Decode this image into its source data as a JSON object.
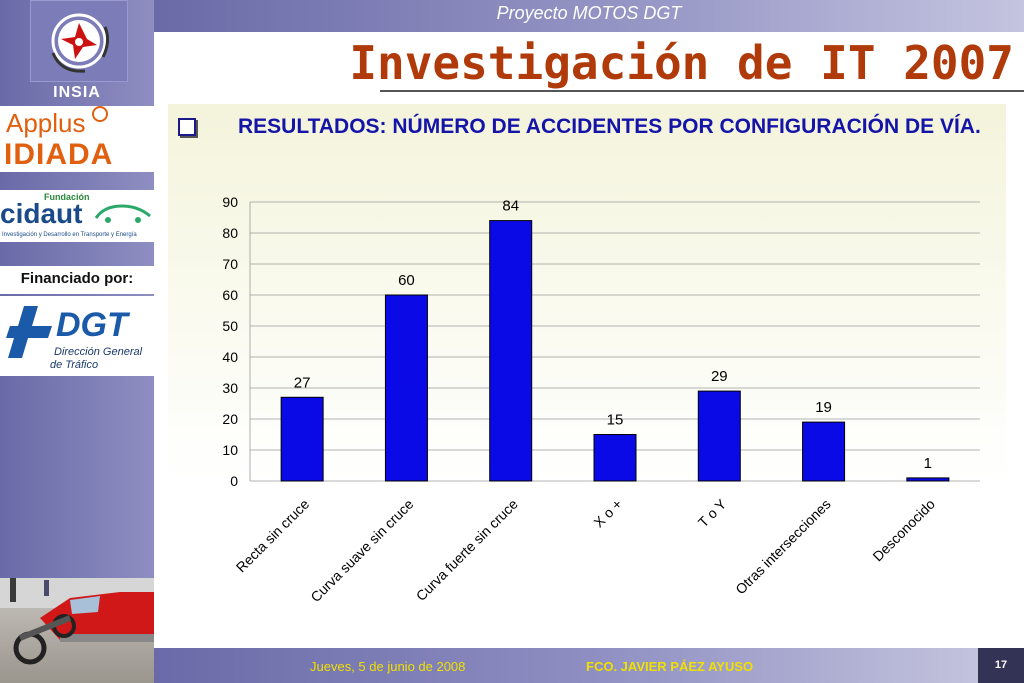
{
  "header": {
    "project": "Proyecto MOTOS DGT",
    "title": "Investigación de IT 2007"
  },
  "sidebar": {
    "insia": "INSIA",
    "applus": "Applus",
    "idiada": "IDIADA",
    "fundacion": "Fundación",
    "cidaut": "cidaut",
    "cidaut_tagline": "Investigación y Desarrollo en Transporte y Energía",
    "financiado": "Financiado por:",
    "dgt": "DGT",
    "dgt_sub1": "Dirección General",
    "dgt_sub2": "de Tráfico"
  },
  "heading": "RESULTADOS: NÚMERO DE ACCIDENTES POR CONFIGURACIÓN DE VÍA.",
  "chart_data": {
    "type": "bar",
    "categories": [
      "Recta sin cruce",
      "Curva suave sin cruce",
      "Curva fuerte sin cruce",
      "X o +",
      "T o Y",
      "Otras intersecciones",
      "Desconocido"
    ],
    "values": [
      27,
      60,
      84,
      15,
      29,
      19,
      1
    ],
    "ylim": [
      0,
      90
    ],
    "yticks": [
      0,
      10,
      20,
      30,
      40,
      50,
      60,
      70,
      80,
      90
    ],
    "grid": true,
    "bar_color": "#0a0ae6",
    "xlabel": "",
    "ylabel": ""
  },
  "footer": {
    "date": "Jueves, 5 de junio de 2008",
    "author": "FCO. JAVIER PÁEZ AYUSO",
    "page": "17"
  },
  "colors": {
    "title": "#b03a0a",
    "heading": "#1414a8",
    "footer_text": "#f0e000",
    "sidebar": "#7a7ab6"
  }
}
